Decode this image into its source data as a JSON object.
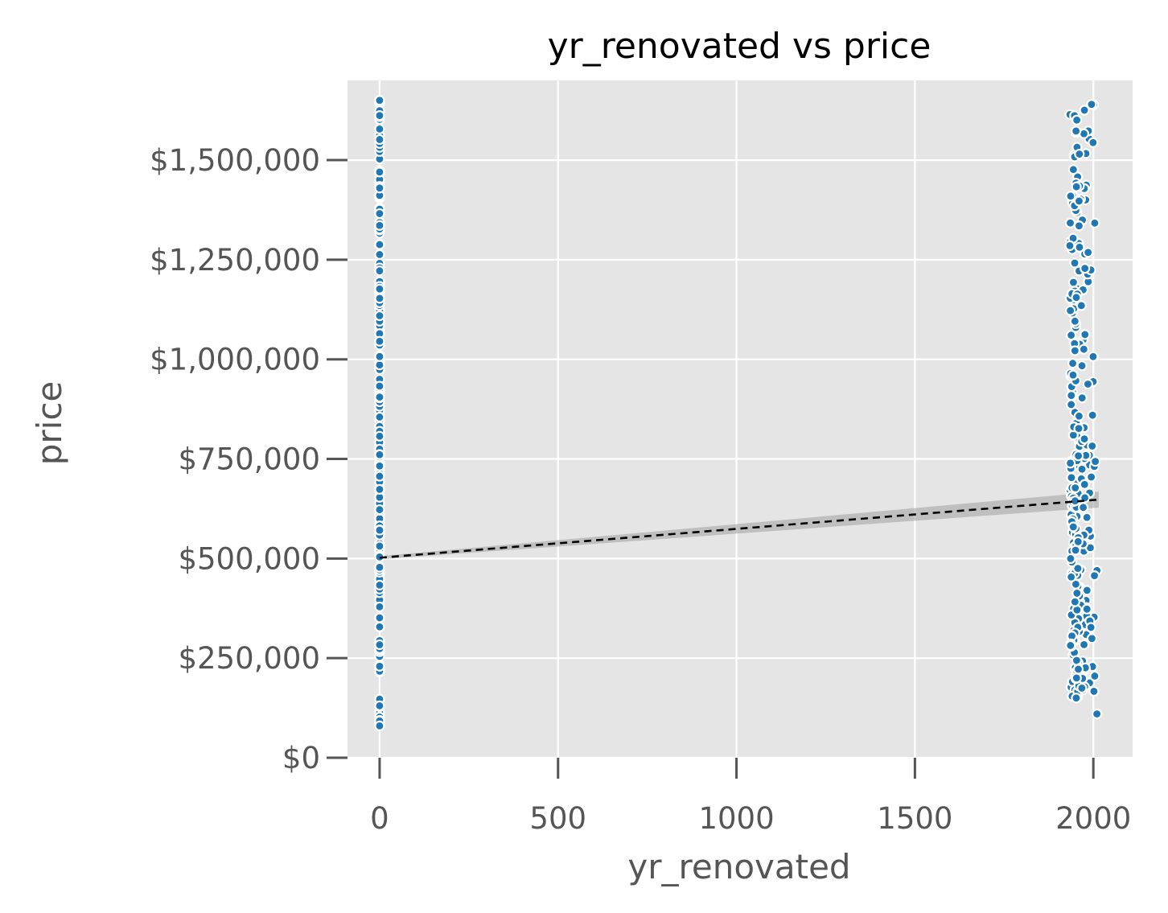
{
  "chart_data": {
    "type": "scatter",
    "title": "yr_renovated vs price",
    "xlabel": "yr_renovated",
    "ylabel": "price",
    "xlim": [
      -90,
      2110
    ],
    "ylim": [
      0,
      1700000
    ],
    "x_ticks": [
      0,
      500,
      1000,
      1500,
      2000
    ],
    "x_tick_labels": [
      "0",
      "500",
      "1000",
      "1500",
      "2000"
    ],
    "y_ticks": [
      0,
      250000,
      500000,
      750000,
      1000000,
      1250000,
      1500000
    ],
    "y_tick_labels": [
      "$0",
      "$250,000",
      "$500,000",
      "$750,000",
      "$1,000,000",
      "$1,250,000",
      "$1,500,000"
    ],
    "grid": true,
    "background": "#e5e5e5",
    "point_color": "#1f77b4",
    "point_edge_color": "#ffffff",
    "point_summary": {
      "not_renovated": {
        "x": 0,
        "y_range": [
          80000,
          1650000
        ]
      },
      "renovated": {
        "x_range": [
          1934,
          2015
        ],
        "y_range": [
          110000,
          1640000
        ]
      }
    },
    "fit_line": {
      "x": [
        0,
        2015
      ],
      "y": [
        502000,
        648000
      ],
      "style": "dashed",
      "color": "#000000"
    },
    "confidence_band": {
      "x": [
        0,
        2015
      ],
      "lower": [
        498000,
        628000
      ],
      "upper": [
        506000,
        668000
      ],
      "color": "#aaaaaa"
    }
  }
}
